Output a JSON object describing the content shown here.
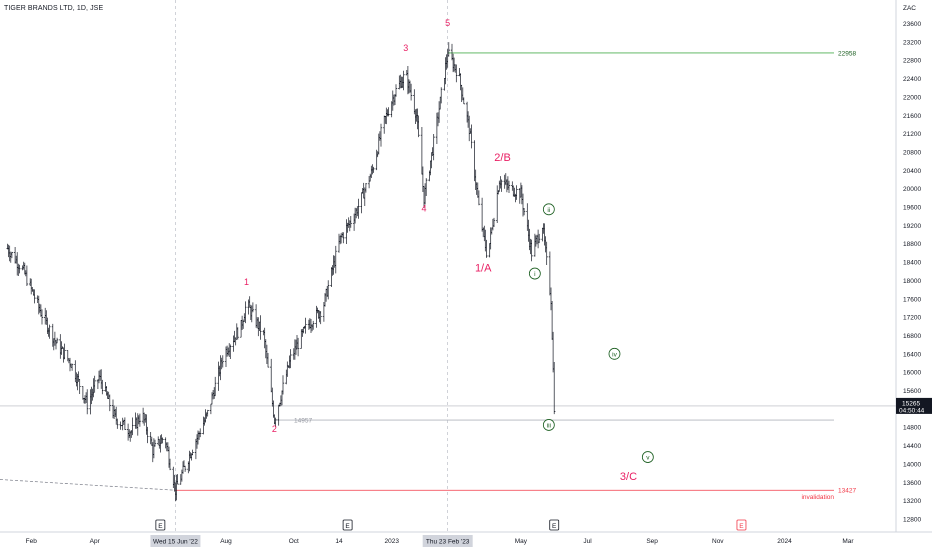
{
  "header": {
    "title": "TIGER BRANDS LTD, 1D, JSE"
  },
  "chart_data": {
    "type": "ohlc",
    "currency": "ZAC",
    "y_ticks": [
      12800,
      13200,
      13600,
      14000,
      14400,
      14800,
      15200,
      15600,
      16000,
      16400,
      16800,
      17200,
      17600,
      18000,
      18400,
      18800,
      19200,
      19600,
      20000,
      20400,
      20800,
      21200,
      21600,
      22000,
      22400,
      22800,
      23200,
      23600
    ],
    "ylim": [
      12500,
      23950
    ],
    "x_labels": [
      {
        "label": "Feb",
        "date": "2022-02-01"
      },
      {
        "label": "Apr",
        "date": "2022-04-01"
      },
      {
        "label": "Aug",
        "date": "2022-08-01"
      },
      {
        "label": "Oct",
        "date": "2022-10-03"
      },
      {
        "label": "14",
        "date": "2022-11-14"
      },
      {
        "label": "2023",
        "date": "2023-01-02"
      },
      {
        "label": "May",
        "date": "2023-05-02"
      },
      {
        "label": "Jul",
        "date": "2023-07-03"
      },
      {
        "label": "Sep",
        "date": "2023-09-01"
      },
      {
        "label": "Nov",
        "date": "2023-11-01"
      },
      {
        "label": "2024",
        "date": "2024-01-02"
      },
      {
        "label": "Mar",
        "date": "2024-03-01"
      }
    ],
    "x_highlights": [
      {
        "label": "Wed 15 Jun '22",
        "date": "2022-06-15"
      },
      {
        "label": "Thu 23 Feb '23",
        "date": "2023-02-23"
      }
    ],
    "price_path": [
      [
        "2022-01-10",
        18700
      ],
      [
        "2022-01-25",
        18200
      ],
      [
        "2022-02-10",
        17300
      ],
      [
        "2022-02-25",
        16600
      ],
      [
        "2022-03-10",
        16200
      ],
      [
        "2022-03-25",
        15300
      ],
      [
        "2022-04-05",
        15900
      ],
      [
        "2022-04-20",
        15000
      ],
      [
        "2022-05-05",
        14700
      ],
      [
        "2022-05-15",
        15100
      ],
      [
        "2022-05-25",
        14300
      ],
      [
        "2022-06-05",
        14600
      ],
      [
        "2022-06-15",
        13427
      ],
      [
        "2022-06-30",
        14300
      ],
      [
        "2022-07-15",
        15100
      ],
      [
        "2022-07-30",
        16400
      ],
      [
        "2022-08-15",
        17000
      ],
      [
        "2022-08-20",
        17500
      ],
      [
        "2022-09-05",
        16800
      ],
      [
        "2022-09-15",
        14957
      ],
      [
        "2022-09-30",
        16300
      ],
      [
        "2022-10-15",
        17000
      ],
      [
        "2022-10-30",
        17400
      ],
      [
        "2022-11-15",
        18900
      ],
      [
        "2022-11-30",
        19500
      ],
      [
        "2022-12-15",
        20400
      ],
      [
        "2022-12-25",
        21400
      ],
      [
        "2023-01-05",
        22100
      ],
      [
        "2023-01-15",
        22500
      ],
      [
        "2023-01-25",
        21600
      ],
      [
        "2023-02-01",
        19800
      ],
      [
        "2023-02-10",
        21000
      ],
      [
        "2023-02-23",
        22958
      ],
      [
        "2023-03-05",
        22500
      ],
      [
        "2023-03-15",
        21300
      ],
      [
        "2023-03-25",
        19400
      ],
      [
        "2023-04-01",
        18500
      ],
      [
        "2023-04-12",
        20200
      ],
      [
        "2023-04-22",
        20000
      ],
      [
        "2023-05-02",
        19900
      ],
      [
        "2023-05-12",
        18600
      ],
      [
        "2023-05-22",
        19200
      ],
      [
        "2023-05-30",
        17600
      ],
      [
        "2023-06-02",
        15265
      ]
    ],
    "horizontal_levels": [
      {
        "value": 22958,
        "label": "22958",
        "color": "#4caf50"
      },
      {
        "value": 14957,
        "label": "14957",
        "color": "#b2b5be"
      },
      {
        "value": 13427,
        "label": "13427",
        "color": "#f23645",
        "note": "invalidation"
      }
    ],
    "last_price": {
      "value": 15265,
      "label": "15265",
      "countdown": "04:50:44"
    },
    "wave_labels": [
      {
        "text": "1",
        "date": "2022-08-20",
        "price": 17900,
        "color": "#e91e63"
      },
      {
        "text": "2",
        "date": "2022-09-15",
        "price": 14700,
        "color": "#e91e63"
      },
      {
        "text": "3",
        "date": "2023-01-15",
        "price": 23000,
        "color": "#e91e63"
      },
      {
        "text": "4",
        "date": "2023-02-01",
        "price": 19500,
        "color": "#e91e63"
      },
      {
        "text": "5",
        "date": "2023-02-23",
        "price": 23550,
        "color": "#e91e63"
      },
      {
        "text": "1/A",
        "date": "2023-03-28",
        "price": 18200,
        "color": "#e91e63"
      },
      {
        "text": "2/B",
        "date": "2023-04-15",
        "price": 20600,
        "color": "#e91e63"
      },
      {
        "text": "3/C",
        "date": "2023-08-10",
        "price": 13650,
        "color": "#e91e63"
      }
    ],
    "circle_labels": [
      {
        "text": "i",
        "date": "2023-05-15",
        "price": 18150,
        "color": "#1b5e20"
      },
      {
        "text": "ii",
        "date": "2023-05-28",
        "price": 19550,
        "color": "#1b5e20"
      },
      {
        "text": "iii",
        "date": "2023-05-28",
        "price": 14850,
        "color": "#1b5e20"
      },
      {
        "text": "iv",
        "date": "2023-07-28",
        "price": 16400,
        "color": "#1b5e20"
      },
      {
        "text": "v",
        "date": "2023-08-28",
        "price": 14150,
        "color": "#1b5e20"
      }
    ],
    "events": [
      {
        "text": "E",
        "date": "2022-06-01",
        "color": "#131722"
      },
      {
        "text": "E",
        "date": "2022-11-22",
        "color": "#131722"
      },
      {
        "text": "E",
        "date": "2023-06-02",
        "color": "#131722"
      },
      {
        "text": "E",
        "date": "2023-11-23",
        "color": "#f23645"
      }
    ],
    "trendline": {
      "from": [
        "2021-11-20",
        13650
      ],
      "to": [
        "2022-06-15",
        13427
      ]
    },
    "grid": false
  }
}
